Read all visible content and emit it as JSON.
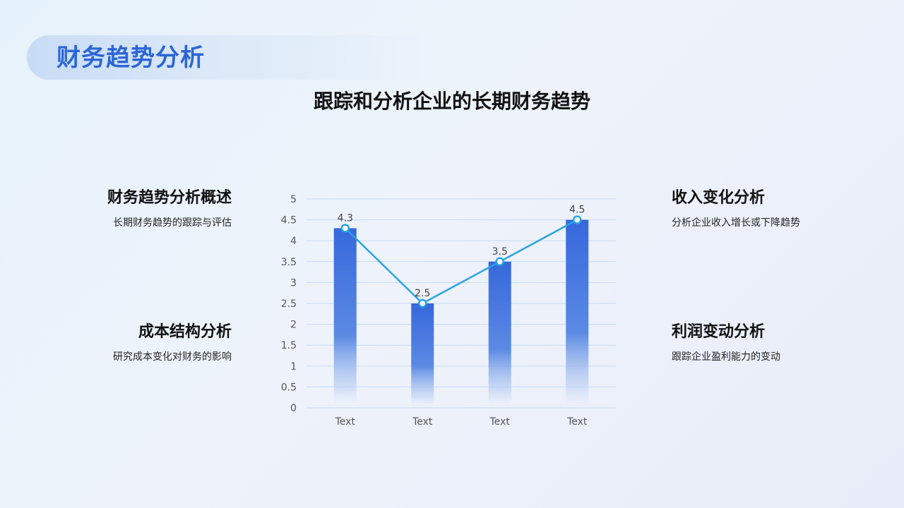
{
  "header": {
    "title": "财务趋势分析"
  },
  "subtitle": "跟踪和分析企业的长期财务趋势",
  "blocks": {
    "overview": {
      "heading": "财务趋势分析概述",
      "desc": "长期财务趋势的跟踪与评估"
    },
    "cost": {
      "heading": "成本结构分析",
      "desc": "研究成本变化对财务的影响"
    },
    "revenue": {
      "heading": "收入变化分析",
      "desc": "分析企业收入增长或下降趋势"
    },
    "profit": {
      "heading": "利润变动分析",
      "desc": "跟踪企业盈利能力的变动"
    }
  },
  "colors": {
    "bar": "#3a6fdc",
    "line": "#2aa3e2",
    "accent": "#2c66d6"
  },
  "chart_data": {
    "type": "bar",
    "categories": [
      "Text",
      "Text",
      "Text",
      "Text"
    ],
    "values": [
      4.3,
      2.5,
      3.5,
      4.5
    ],
    "line_values": [
      4.3,
      2.5,
      3.5,
      4.5
    ],
    "yticks": [
      "0",
      "0.5",
      "1",
      "1.5",
      "2",
      "2.5",
      "3",
      "3.5",
      "4",
      "4.5",
      "5"
    ],
    "data_labels": [
      "4.3",
      "2.5",
      "3.5",
      "4.5"
    ],
    "ylim": [
      0,
      5
    ],
    "grid": true,
    "title": "",
    "xlabel": "",
    "ylabel": ""
  }
}
